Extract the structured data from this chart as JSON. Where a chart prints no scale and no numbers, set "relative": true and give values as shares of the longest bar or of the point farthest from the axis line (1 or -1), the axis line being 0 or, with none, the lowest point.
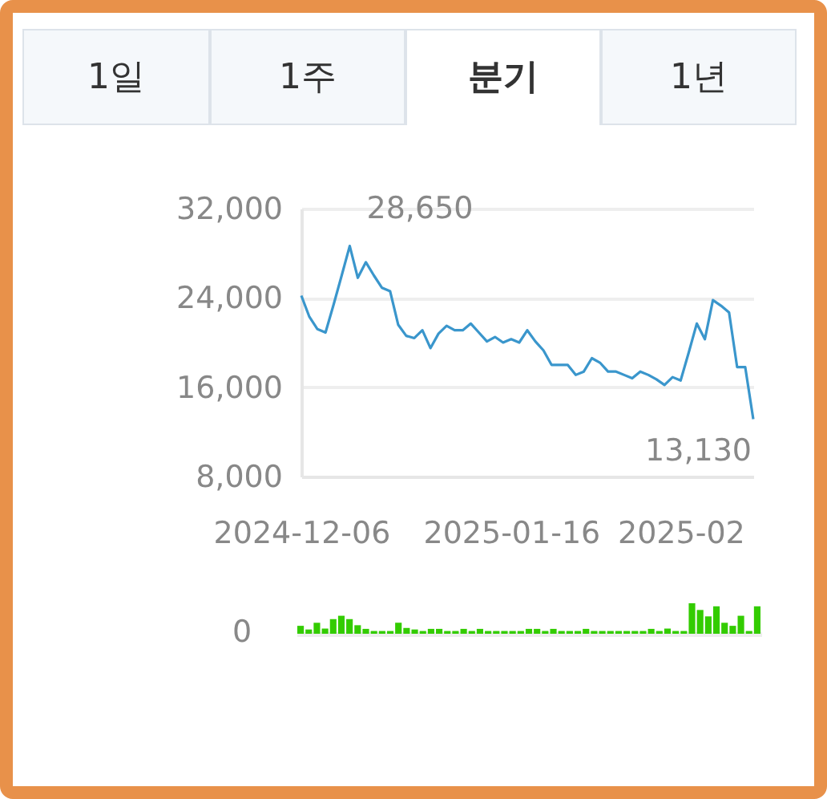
{
  "chart_data": [
    {
      "type": "line",
      "categories": [
        "2024-12-06",
        null,
        null,
        null,
        null,
        null,
        null,
        null,
        null,
        null,
        null,
        null,
        null,
        null,
        null,
        null,
        null,
        null,
        null,
        null,
        null,
        null,
        null,
        null,
        null,
        null,
        "2025-01-16",
        null,
        null,
        null,
        null,
        null,
        null,
        null,
        null,
        null,
        null,
        null,
        null,
        null,
        null,
        null,
        null,
        null,
        null,
        null,
        null,
        "2025-02",
        null,
        null,
        null,
        null,
        null,
        null,
        null,
        null,
        null
      ],
      "values": [
        24200,
        22300,
        21200,
        20900,
        23400,
        26000,
        28650,
        25800,
        27200,
        26000,
        24900,
        24600,
        21600,
        20600,
        20400,
        21100,
        19500,
        20800,
        21500,
        21100,
        21100,
        21700,
        20900,
        20100,
        20500,
        20000,
        20300,
        20000,
        21100,
        20100,
        19300,
        18000,
        18000,
        18000,
        17100,
        17400,
        18600,
        18200,
        17400,
        17400,
        17100,
        16800,
        17400,
        17100,
        16700,
        16200,
        16900,
        16600,
        19100,
        21700,
        20300,
        23800,
        23300,
        22700,
        17800,
        17800,
        13130
      ],
      "color": "#3a96cc",
      "ylim": [
        8000,
        32000
      ],
      "yticks": [
        {
          "value": 8000,
          "label": "8,000"
        },
        {
          "value": 16000,
          "label": "16,000"
        },
        {
          "value": 24000,
          "label": "24,000"
        },
        {
          "value": 32000,
          "label": "32,000"
        }
      ],
      "grid": "y",
      "annotations": [
        "1일",
        "1주",
        "분기",
        "1년",
        "28,650",
        "13,130"
      ]
    },
    {
      "type": "bar",
      "relative": true,
      "color": "#33cc00",
      "categories": [
        null,
        null,
        null,
        null,
        null,
        null,
        null,
        null,
        null,
        null,
        null,
        null,
        null,
        null,
        null,
        null,
        null,
        null,
        null,
        null,
        null,
        null,
        null,
        null,
        null,
        null,
        null,
        null,
        null,
        null,
        null,
        null,
        null,
        null,
        null,
        null,
        null,
        null,
        null,
        null,
        null,
        null,
        null,
        null,
        null,
        null,
        null,
        null,
        null,
        null,
        null,
        null,
        null,
        null,
        null,
        null,
        null
      ],
      "values": [
        0.26,
        0.14,
        0.36,
        0.17,
        0.48,
        0.59,
        0.48,
        0.28,
        0.16,
        0.09,
        0.09,
        0.09,
        0.36,
        0.19,
        0.14,
        0.09,
        0.16,
        0.16,
        0.09,
        0.09,
        0.16,
        0.09,
        0.16,
        0.09,
        0.09,
        0.09,
        0.09,
        0.09,
        0.16,
        0.16,
        0.09,
        0.16,
        0.09,
        0.09,
        0.09,
        0.16,
        0.09,
        0.09,
        0.09,
        0.09,
        0.09,
        0.09,
        0.09,
        0.16,
        0.09,
        0.17,
        0.09,
        0.09,
        1,
        0.78,
        0.57,
        0.9,
        0.36,
        0.26,
        0.59,
        0.09,
        0.9
      ],
      "annotations": [
        "0"
      ]
    }
  ]
}
